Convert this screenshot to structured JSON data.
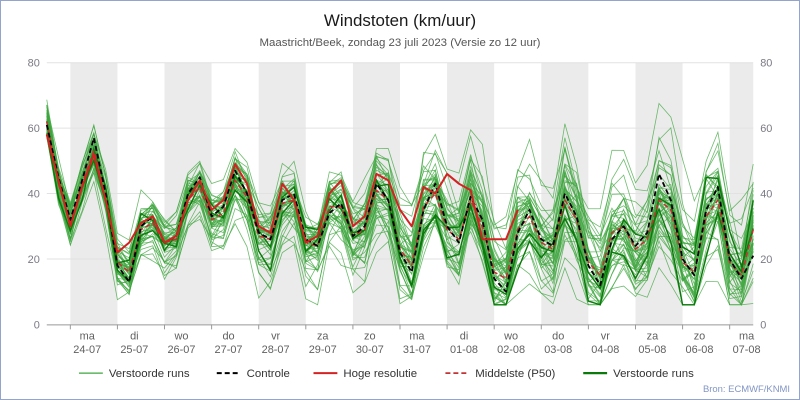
{
  "chart_data": {
    "type": "line",
    "title": "Windstoten (km/uur)",
    "subtitle": "Maastricht/Beek, zondag 23 juli 2023 (Versie zo 12 uur)",
    "source": "Bron: ECMWF/KNMI",
    "ylabel": "km/uur",
    "ylim": [
      0,
      80
    ],
    "yticks": [
      0,
      20,
      40,
      60,
      80
    ],
    "x_step_hours": 6,
    "n_points": 61,
    "grid": "horizontal",
    "legend_position": "bottom",
    "day_labels": [
      {
        "day": "ma",
        "date": "24-07"
      },
      {
        "day": "di",
        "date": "25-07"
      },
      {
        "day": "wo",
        "date": "26-07"
      },
      {
        "day": "do",
        "date": "27-07"
      },
      {
        "day": "vr",
        "date": "28-07"
      },
      {
        "day": "za",
        "date": "29-07"
      },
      {
        "day": "zo",
        "date": "30-07"
      },
      {
        "day": "ma",
        "date": "31-07"
      },
      {
        "day": "di",
        "date": "01-08"
      },
      {
        "day": "wo",
        "date": "02-08"
      },
      {
        "day": "do",
        "date": "03-08"
      },
      {
        "day": "vr",
        "date": "04-08"
      },
      {
        "day": "za",
        "date": "05-08"
      },
      {
        "day": "zo",
        "date": "06-08"
      },
      {
        "day": "ma",
        "date": "07-08"
      }
    ],
    "series": [
      {
        "name": "Controle",
        "style": "black-dashed",
        "values": [
          61,
          45,
          32,
          44,
          57,
          40,
          18,
          13,
          30,
          33,
          25,
          27,
          40,
          45,
          33,
          36,
          47,
          40,
          28,
          26,
          38,
          40,
          26,
          24,
          34,
          37,
          27,
          30,
          43,
          38,
          22,
          16,
          35,
          43,
          30,
          25,
          39,
          32,
          14,
          10,
          28,
          35,
          26,
          24,
          40,
          33,
          18,
          12,
          26,
          30,
          24,
          28,
          46,
          38,
          20,
          15,
          35,
          42,
          20,
          14,
          21
        ]
      },
      {
        "name": "Hoge resolutie",
        "style": "red-solid",
        "values": [
          58,
          44,
          30,
          42,
          52,
          38,
          22,
          25,
          31,
          33,
          25,
          27,
          38,
          44,
          35,
          38,
          49,
          43,
          30,
          28,
          43,
          38,
          25,
          27,
          40,
          44,
          30,
          33,
          46,
          44,
          35,
          30,
          42,
          40,
          46,
          43,
          41,
          26,
          26,
          26,
          35
        ]
      },
      {
        "name": "Middelste (P50)",
        "style": "red-dashed",
        "values": [
          62,
          43,
          31,
          43,
          53,
          39,
          19,
          16,
          29,
          31,
          25,
          26,
          38,
          42,
          32,
          34,
          44,
          39,
          27,
          26,
          37,
          38,
          25,
          24,
          36,
          36,
          27,
          29,
          41,
          38,
          23,
          18,
          36,
          40,
          29,
          26,
          38,
          30,
          16,
          14,
          29,
          33,
          25,
          23,
          38,
          32,
          19,
          15,
          28,
          30,
          23,
          26,
          38,
          35,
          19,
          16,
          33,
          38,
          19,
          15,
          29
        ]
      }
    ],
    "ensemble": {
      "name": "Verstoorde runs",
      "n_members": 50,
      "spread_by_day": [
        7,
        6,
        7,
        8,
        9,
        10,
        10,
        11,
        11,
        12,
        12,
        13,
        13,
        14,
        14,
        15
      ]
    }
  },
  "legend": {
    "items": [
      {
        "label": "Verstoorde runs",
        "style": "green-thin"
      },
      {
        "label": "Controle",
        "style": "black-dashed"
      },
      {
        "label": "Hoge resolutie",
        "style": "red-solid"
      },
      {
        "label": "Middelste (P50)",
        "style": "red-dashed"
      },
      {
        "label": "Verstoorde runs",
        "style": "green-thick"
      }
    ]
  },
  "colors": {
    "ensemble": "#3da63d",
    "ensemble_dark": "#0a7a0a",
    "control": "#000000",
    "hires": "#d42222",
    "median": "#c23434",
    "band": "#ebebeb",
    "grid": "#e2e2e2",
    "axis": "#999999",
    "border": "#93a5cd"
  }
}
